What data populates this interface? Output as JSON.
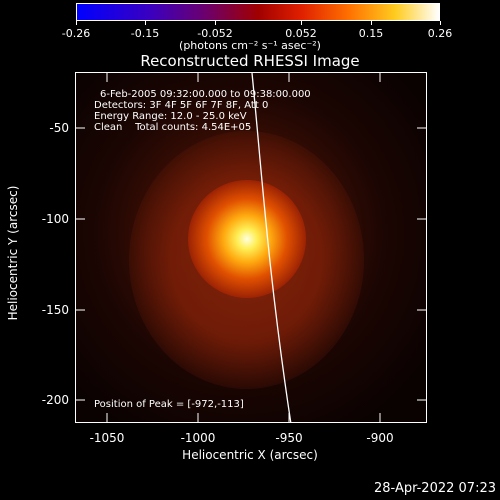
{
  "colorbar": {
    "tick_labels": [
      "-0.26",
      "-0.15",
      "-0.052",
      "0.052",
      "0.15",
      "0.26"
    ],
    "units": "(photons cm⁻² s⁻¹ asec⁻²)"
  },
  "title": "Reconstructed RHESSI Image",
  "annotations": {
    "time_range": "6-Feb-2005 09:32:00.000 to 09:38:00.000",
    "detectors": "Detectors: 3F 4F 5F 6F 7F 8F, Att 0",
    "energy": "Energy Range: 12.0 - 25.0 keV",
    "clean": "Clean    Total counts: 4.54E+05",
    "peak": "Position of Peak = [-972,-113]"
  },
  "axes": {
    "xlabel": "Heliocentric X (arcsec)",
    "ylabel": "Heliocentric Y (arcsec)",
    "x_ticks": [
      "-1050",
      "-1000",
      "-950",
      "-900"
    ],
    "y_ticks": [
      "-50",
      "-100",
      "-150",
      "-200"
    ]
  },
  "timestamp": "28-Apr-2022 07:23"
}
